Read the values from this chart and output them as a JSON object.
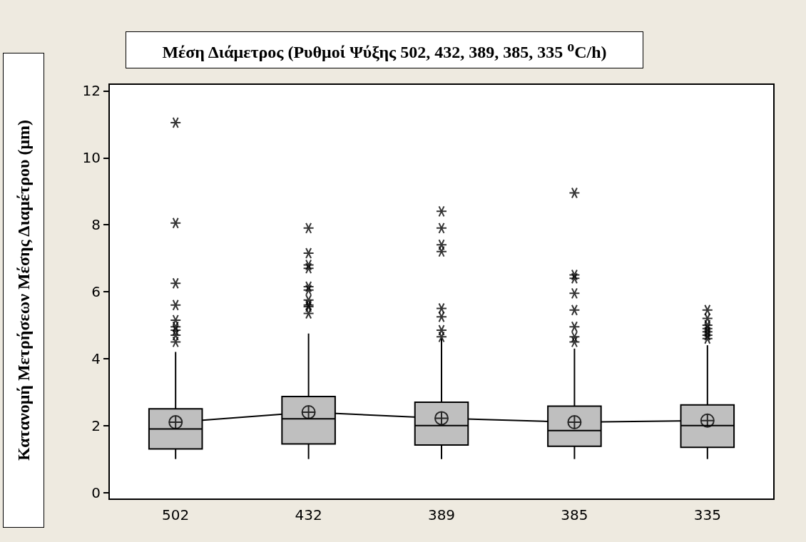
{
  "chart_data": {
    "type": "box",
    "title": "Μέση Διάμετρος (Ρυθμοί Ψύξης 502, 432, 389, 385, 335 $^{o}$C/h)",
    "ylabel": "Κατανομή Μετρήσεων Μέσης Διαμέτρου (μm)",
    "categories": [
      "502",
      "432",
      "389",
      "385",
      "335"
    ],
    "color": "#bfbfbf",
    "boxes": [
      {
        "low": 1.0,
        "q1": 1.3,
        "median": 1.9,
        "q3": 2.5,
        "high": 4.2,
        "mean": 2.1,
        "outliers": [
          11.05,
          8.05,
          6.25,
          5.6,
          5.15,
          4.95,
          4.85,
          4.7,
          4.5
        ]
      },
      {
        "low": 1.0,
        "q1": 1.45,
        "median": 2.2,
        "q3": 2.87,
        "high": 4.75,
        "mean": 2.4,
        "outliers": [
          7.9,
          7.15,
          6.8,
          6.7,
          6.15,
          6.05,
          5.75,
          5.6,
          5.55,
          5.35
        ]
      },
      {
        "low": 1.0,
        "q1": 1.42,
        "median": 2.0,
        "q3": 2.7,
        "high": 4.6,
        "mean": 2.22,
        "outliers": [
          8.4,
          7.9,
          7.4,
          7.2,
          5.5,
          5.25,
          4.85,
          4.65
        ]
      },
      {
        "low": 1.0,
        "q1": 1.38,
        "median": 1.85,
        "q3": 2.58,
        "high": 4.3,
        "mean": 2.1,
        "outliers": [
          8.95,
          6.5,
          6.4,
          5.95,
          5.45,
          4.95,
          4.65,
          4.5
        ]
      },
      {
        "low": 1.0,
        "q1": 1.35,
        "median": 2.0,
        "q3": 2.62,
        "high": 4.4,
        "mean": 2.15,
        "outliers": [
          5.45,
          5.2,
          5.0,
          4.9,
          4.8,
          4.7,
          4.6
        ]
      }
    ],
    "ylim": [
      -0.2,
      12.2
    ],
    "yticks": [
      0,
      2,
      4,
      6,
      8,
      10,
      12
    ],
    "series": [
      {
        "type": "line",
        "color": "#000000",
        "values": [
          2.1,
          2.4,
          2.22,
          2.1,
          2.15
        ]
      }
    ],
    "grid": false
  }
}
